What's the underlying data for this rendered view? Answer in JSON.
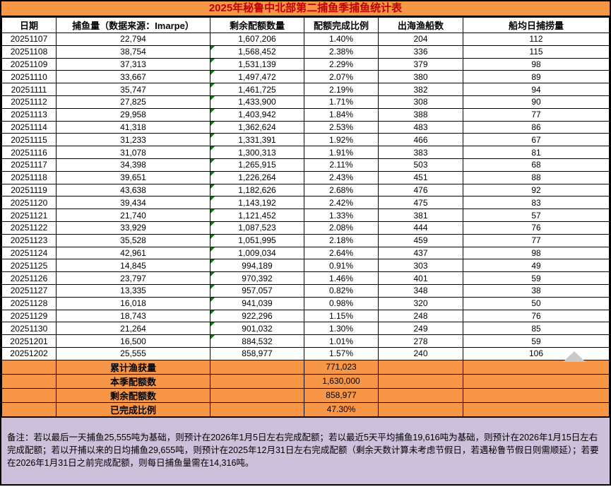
{
  "title": "2025年秘鲁中北部第二捕鱼季捕鱼统计表",
  "colors": {
    "title_bg": "#F79646",
    "title_text": "#C00000",
    "date_column_bg": "#B8CCE4",
    "summary_bg": "#F79646",
    "note_bg": "#CCC0DA",
    "error_flag_green": "#077A07",
    "watermark_gray": "#C9C9C9",
    "border": "#000000"
  },
  "icons": {
    "error_flag": "green top-left corner triangle (spreadsheet cell flag)",
    "watermark": "gray upward triangle shape peeking above summary rows"
  },
  "table": {
    "headers": [
      "日期",
      "捕鱼量（数据来源：Imarpe）",
      "剩余配额数量",
      "配额完成比例",
      "出海渔船数",
      "船均日捕捞量"
    ],
    "rows": [
      {
        "date": "20251107",
        "catch_volume": "22,794",
        "remaining": "1,607,206",
        "pct": "1.40%",
        "boats": "204",
        "avg_per_boat": "112",
        "flag": false
      },
      {
        "date": "20251108",
        "catch_volume": "38,754",
        "remaining": "1,568,452",
        "pct": "2.38%",
        "boats": "336",
        "avg_per_boat": "115",
        "flag": true
      },
      {
        "date": "20251109",
        "catch_volume": "37,313",
        "remaining": "1,531,139",
        "pct": "2.29%",
        "boats": "379",
        "avg_per_boat": "98",
        "flag": true
      },
      {
        "date": "20251110",
        "catch_volume": "33,667",
        "remaining": "1,497,472",
        "pct": "2.07%",
        "boats": "380",
        "avg_per_boat": "89",
        "flag": true
      },
      {
        "date": "20251111",
        "catch_volume": "35,747",
        "remaining": "1,461,725",
        "pct": "2.19%",
        "boats": "382",
        "avg_per_boat": "94",
        "flag": true
      },
      {
        "date": "20251112",
        "catch_volume": "27,825",
        "remaining": "1,433,900",
        "pct": "1.71%",
        "boats": "308",
        "avg_per_boat": "90",
        "flag": true
      },
      {
        "date": "20251113",
        "catch_volume": "29,958",
        "remaining": "1,403,942",
        "pct": "1.84%",
        "boats": "388",
        "avg_per_boat": "77",
        "flag": true
      },
      {
        "date": "20251114",
        "catch_volume": "41,318",
        "remaining": "1,362,624",
        "pct": "2.53%",
        "boats": "483",
        "avg_per_boat": "86",
        "flag": true
      },
      {
        "date": "20251115",
        "catch_volume": "31,233",
        "remaining": "1,331,391",
        "pct": "1.92%",
        "boats": "466",
        "avg_per_boat": "67",
        "flag": true
      },
      {
        "date": "20251116",
        "catch_volume": "31,078",
        "remaining": "1,300,313",
        "pct": "1.91%",
        "boats": "383",
        "avg_per_boat": "81",
        "flag": true
      },
      {
        "date": "20251117",
        "catch_volume": "34,398",
        "remaining": "1,265,915",
        "pct": "2.11%",
        "boats": "503",
        "avg_per_boat": "68",
        "flag": true
      },
      {
        "date": "20251118",
        "catch_volume": "39,651",
        "remaining": "1,226,264",
        "pct": "2.43%",
        "boats": "451",
        "avg_per_boat": "88",
        "flag": true
      },
      {
        "date": "20251119",
        "catch_volume": "43,638",
        "remaining": "1,182,626",
        "pct": "2.68%",
        "boats": "476",
        "avg_per_boat": "92",
        "flag": true
      },
      {
        "date": "20251120",
        "catch_volume": "39,434",
        "remaining": "1,143,192",
        "pct": "2.42%",
        "boats": "475",
        "avg_per_boat": "83",
        "flag": true
      },
      {
        "date": "20251121",
        "catch_volume": "21,740",
        "remaining": "1,121,452",
        "pct": "1.33%",
        "boats": "381",
        "avg_per_boat": "57",
        "flag": true
      },
      {
        "date": "20251122",
        "catch_volume": "33,929",
        "remaining": "1,087,523",
        "pct": "2.08%",
        "boats": "444",
        "avg_per_boat": "76",
        "flag": true
      },
      {
        "date": "20251123",
        "catch_volume": "35,528",
        "remaining": "1,051,995",
        "pct": "2.18%",
        "boats": "459",
        "avg_per_boat": "77",
        "flag": true
      },
      {
        "date": "20251124",
        "catch_volume": "42,961",
        "remaining": "1,009,034",
        "pct": "2.64%",
        "boats": "437",
        "avg_per_boat": "98",
        "flag": true
      },
      {
        "date": "20251125",
        "catch_volume": "14,845",
        "remaining": "994,189",
        "pct": "0.91%",
        "boats": "303",
        "avg_per_boat": "49",
        "flag": true
      },
      {
        "date": "20251126",
        "catch_volume": "23,797",
        "remaining": "970,392",
        "pct": "1.46%",
        "boats": "401",
        "avg_per_boat": "59",
        "flag": true
      },
      {
        "date": "20251127",
        "catch_volume": "13,335",
        "remaining": "957,057",
        "pct": "0.82%",
        "boats": "348",
        "avg_per_boat": "38",
        "flag": true
      },
      {
        "date": "20251128",
        "catch_volume": "16,018",
        "remaining": "941,039",
        "pct": "0.98%",
        "boats": "320",
        "avg_per_boat": "50",
        "flag": true
      },
      {
        "date": "20251129",
        "catch_volume": "18,743",
        "remaining": "922,296",
        "pct": "1.15%",
        "boats": "248",
        "avg_per_boat": "76",
        "flag": true
      },
      {
        "date": "20251130",
        "catch_volume": "21,264",
        "remaining": "901,032",
        "pct": "1.30%",
        "boats": "249",
        "avg_per_boat": "85",
        "flag": true
      },
      {
        "date": "20251201",
        "catch_volume": "16,500",
        "remaining": "884,532",
        "pct": "1.01%",
        "boats": "278",
        "avg_per_boat": "59",
        "flag": true
      },
      {
        "date": "20251202",
        "catch_volume": "25,555",
        "remaining": "858,977",
        "pct": "1.57%",
        "boats": "240",
        "avg_per_boat": "106",
        "flag": false
      }
    ]
  },
  "summary": [
    {
      "label": "累计渔获量",
      "value": "771,023"
    },
    {
      "label": "本季配额数",
      "value": "1,630,000"
    },
    {
      "label": "剩余配额数",
      "value": "858,977"
    },
    {
      "label": "已完成比例",
      "value": "47.30%"
    }
  ],
  "note": "备注：若以最后一天捕鱼25,555吨为基础，则预计在2026年1月5日左右完成配额；若以最近5天平均捕鱼19,616吨为基础，则预计在2026年1月15日左右完成配额；若以开捕以来的日均捕鱼29,655吨，则预计在2025年12月31日左右完成配额（剩余天数计算未考虑节假日，若遇秘鲁节假日则需顺延）；若要在2026年1月31日之前完成配额，则每日捕鱼量需在14,316吨。"
}
